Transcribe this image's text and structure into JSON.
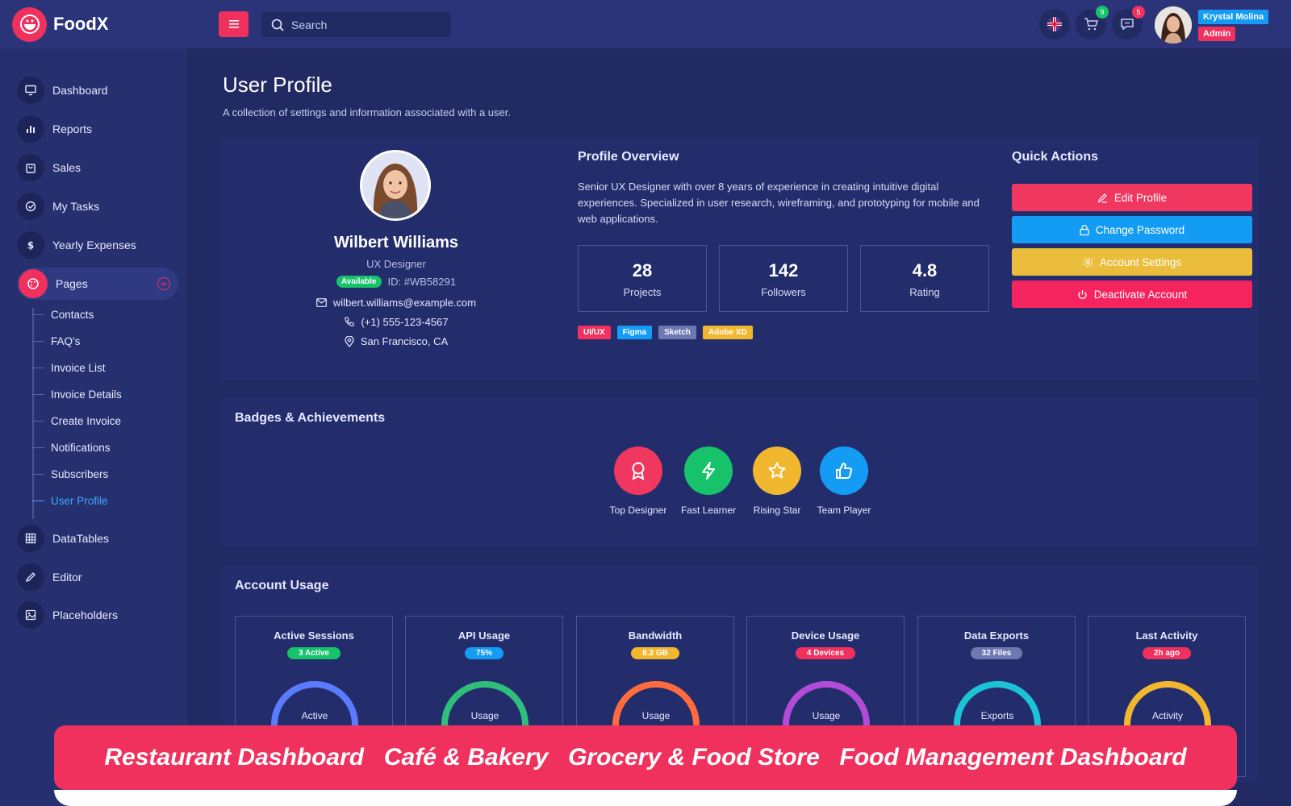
{
  "brand": {
    "name": "FoodX"
  },
  "search": {
    "placeholder": "Search"
  },
  "header": {
    "cart_count": "9",
    "messages_count": "5",
    "user_name": "Krystal Molina",
    "user_role": "Admin"
  },
  "sidebar": {
    "items": [
      {
        "label": "Dashboard",
        "icon": "monitor-icon"
      },
      {
        "label": "Reports",
        "icon": "bar-chart-icon"
      },
      {
        "label": "Sales",
        "icon": "shopping-bag-icon"
      },
      {
        "label": "My Tasks",
        "icon": "task-check-icon"
      },
      {
        "label": "Yearly Expenses",
        "icon": "dollar-icon"
      },
      {
        "label": "Pages",
        "icon": "palette-icon"
      },
      {
        "label": "DataTables",
        "icon": "table-icon"
      },
      {
        "label": "Editor",
        "icon": "pen-icon"
      },
      {
        "label": "Placeholders",
        "icon": "image-icon"
      }
    ],
    "sub_items": [
      "Contacts",
      "FAQ's",
      "Invoice List",
      "Invoice Details",
      "Create Invoice",
      "Notifications",
      "Subscribers",
      "User Profile"
    ]
  },
  "page": {
    "title": "User Profile",
    "subtitle": "A collection of settings and information associated with a user."
  },
  "profile": {
    "name": "Wilbert Williams",
    "role": "UX Designer",
    "status": "Available",
    "id": "ID: #WB58291",
    "email": "wilbert.williams@example.com",
    "phone": "(+1) 555-123-4567",
    "location": "San Francisco, CA"
  },
  "overview": {
    "title": "Profile Overview",
    "text": "Senior UX Designer with over 8 years of experience in creating intuitive digital experiences. Specialized in user research, wireframing, and prototyping for mobile and web applications.",
    "stats": [
      {
        "value": "28",
        "label": "Projects"
      },
      {
        "value": "142",
        "label": "Followers"
      },
      {
        "value": "4.8",
        "label": "Rating"
      }
    ],
    "tags": [
      {
        "label": "UI/UX",
        "color": "#f0315e"
      },
      {
        "label": "Figma",
        "color": "#149cf5"
      },
      {
        "label": "Sketch",
        "color": "#6d77b0"
      },
      {
        "label": "Adobe XD",
        "color": "#f1b72f"
      }
    ]
  },
  "quick_actions": {
    "title": "Quick Actions",
    "buttons": [
      {
        "label": "Edit Profile",
        "color": "#f0375f",
        "icon": "edit-icon"
      },
      {
        "label": "Change Password",
        "color": "#149cf5",
        "icon": "lock-icon"
      },
      {
        "label": "Account Settings",
        "color": "#ebbd3d",
        "icon": "gear-icon"
      },
      {
        "label": "Deactivate Account",
        "color": "#f5245e",
        "icon": "power-icon"
      }
    ]
  },
  "badges": {
    "title": "Badges & Achievements",
    "items": [
      {
        "label": "Top Designer",
        "color": "#f0375f",
        "icon": "award-icon"
      },
      {
        "label": "Fast Learner",
        "color": "#16c36a",
        "icon": "lightning-icon"
      },
      {
        "label": "Rising Star",
        "color": "#f1b72f",
        "icon": "star-icon"
      },
      {
        "label": "Team Player",
        "color": "#149cf5",
        "icon": "thumbs-up-icon"
      }
    ]
  },
  "usage": {
    "title": "Account Usage",
    "items": [
      {
        "title": "Active Sessions",
        "pill": "3 Active",
        "pill_color": "#16c36a",
        "gauge_label": "Active",
        "percent": 60,
        "color": "#5b7bff"
      },
      {
        "title": "API Usage",
        "pill": "75%",
        "pill_color": "#149cf5",
        "gauge_label": "Usage",
        "percent": 75,
        "color": "#2ec07a"
      },
      {
        "title": "Bandwidth",
        "pill": "8.2 GB",
        "pill_color": "#f1b72f",
        "gauge_label": "Usage",
        "percent": 55,
        "color": "#ff6b3d"
      },
      {
        "title": "Device Usage",
        "pill": "4 Devices",
        "pill_color": "#f0315e",
        "gauge_label": "Usage",
        "percent": 80,
        "color": "#b24bd8"
      },
      {
        "title": "Data Exports",
        "pill": "32 Files",
        "pill_color": "#6d77b0",
        "gauge_label": "Exports",
        "percent": 65,
        "color": "#1cc3d6"
      },
      {
        "title": "Last Activity",
        "pill": "2h ago",
        "pill_color": "#f0315e",
        "gauge_label": "Activity",
        "percent": 85,
        "color": "#f1b72f"
      }
    ]
  },
  "banner": {
    "items": [
      "Restaurant Dashboard",
      "Café & Bakery",
      "Grocery & Food Store",
      "Food Management Dashboard"
    ]
  }
}
